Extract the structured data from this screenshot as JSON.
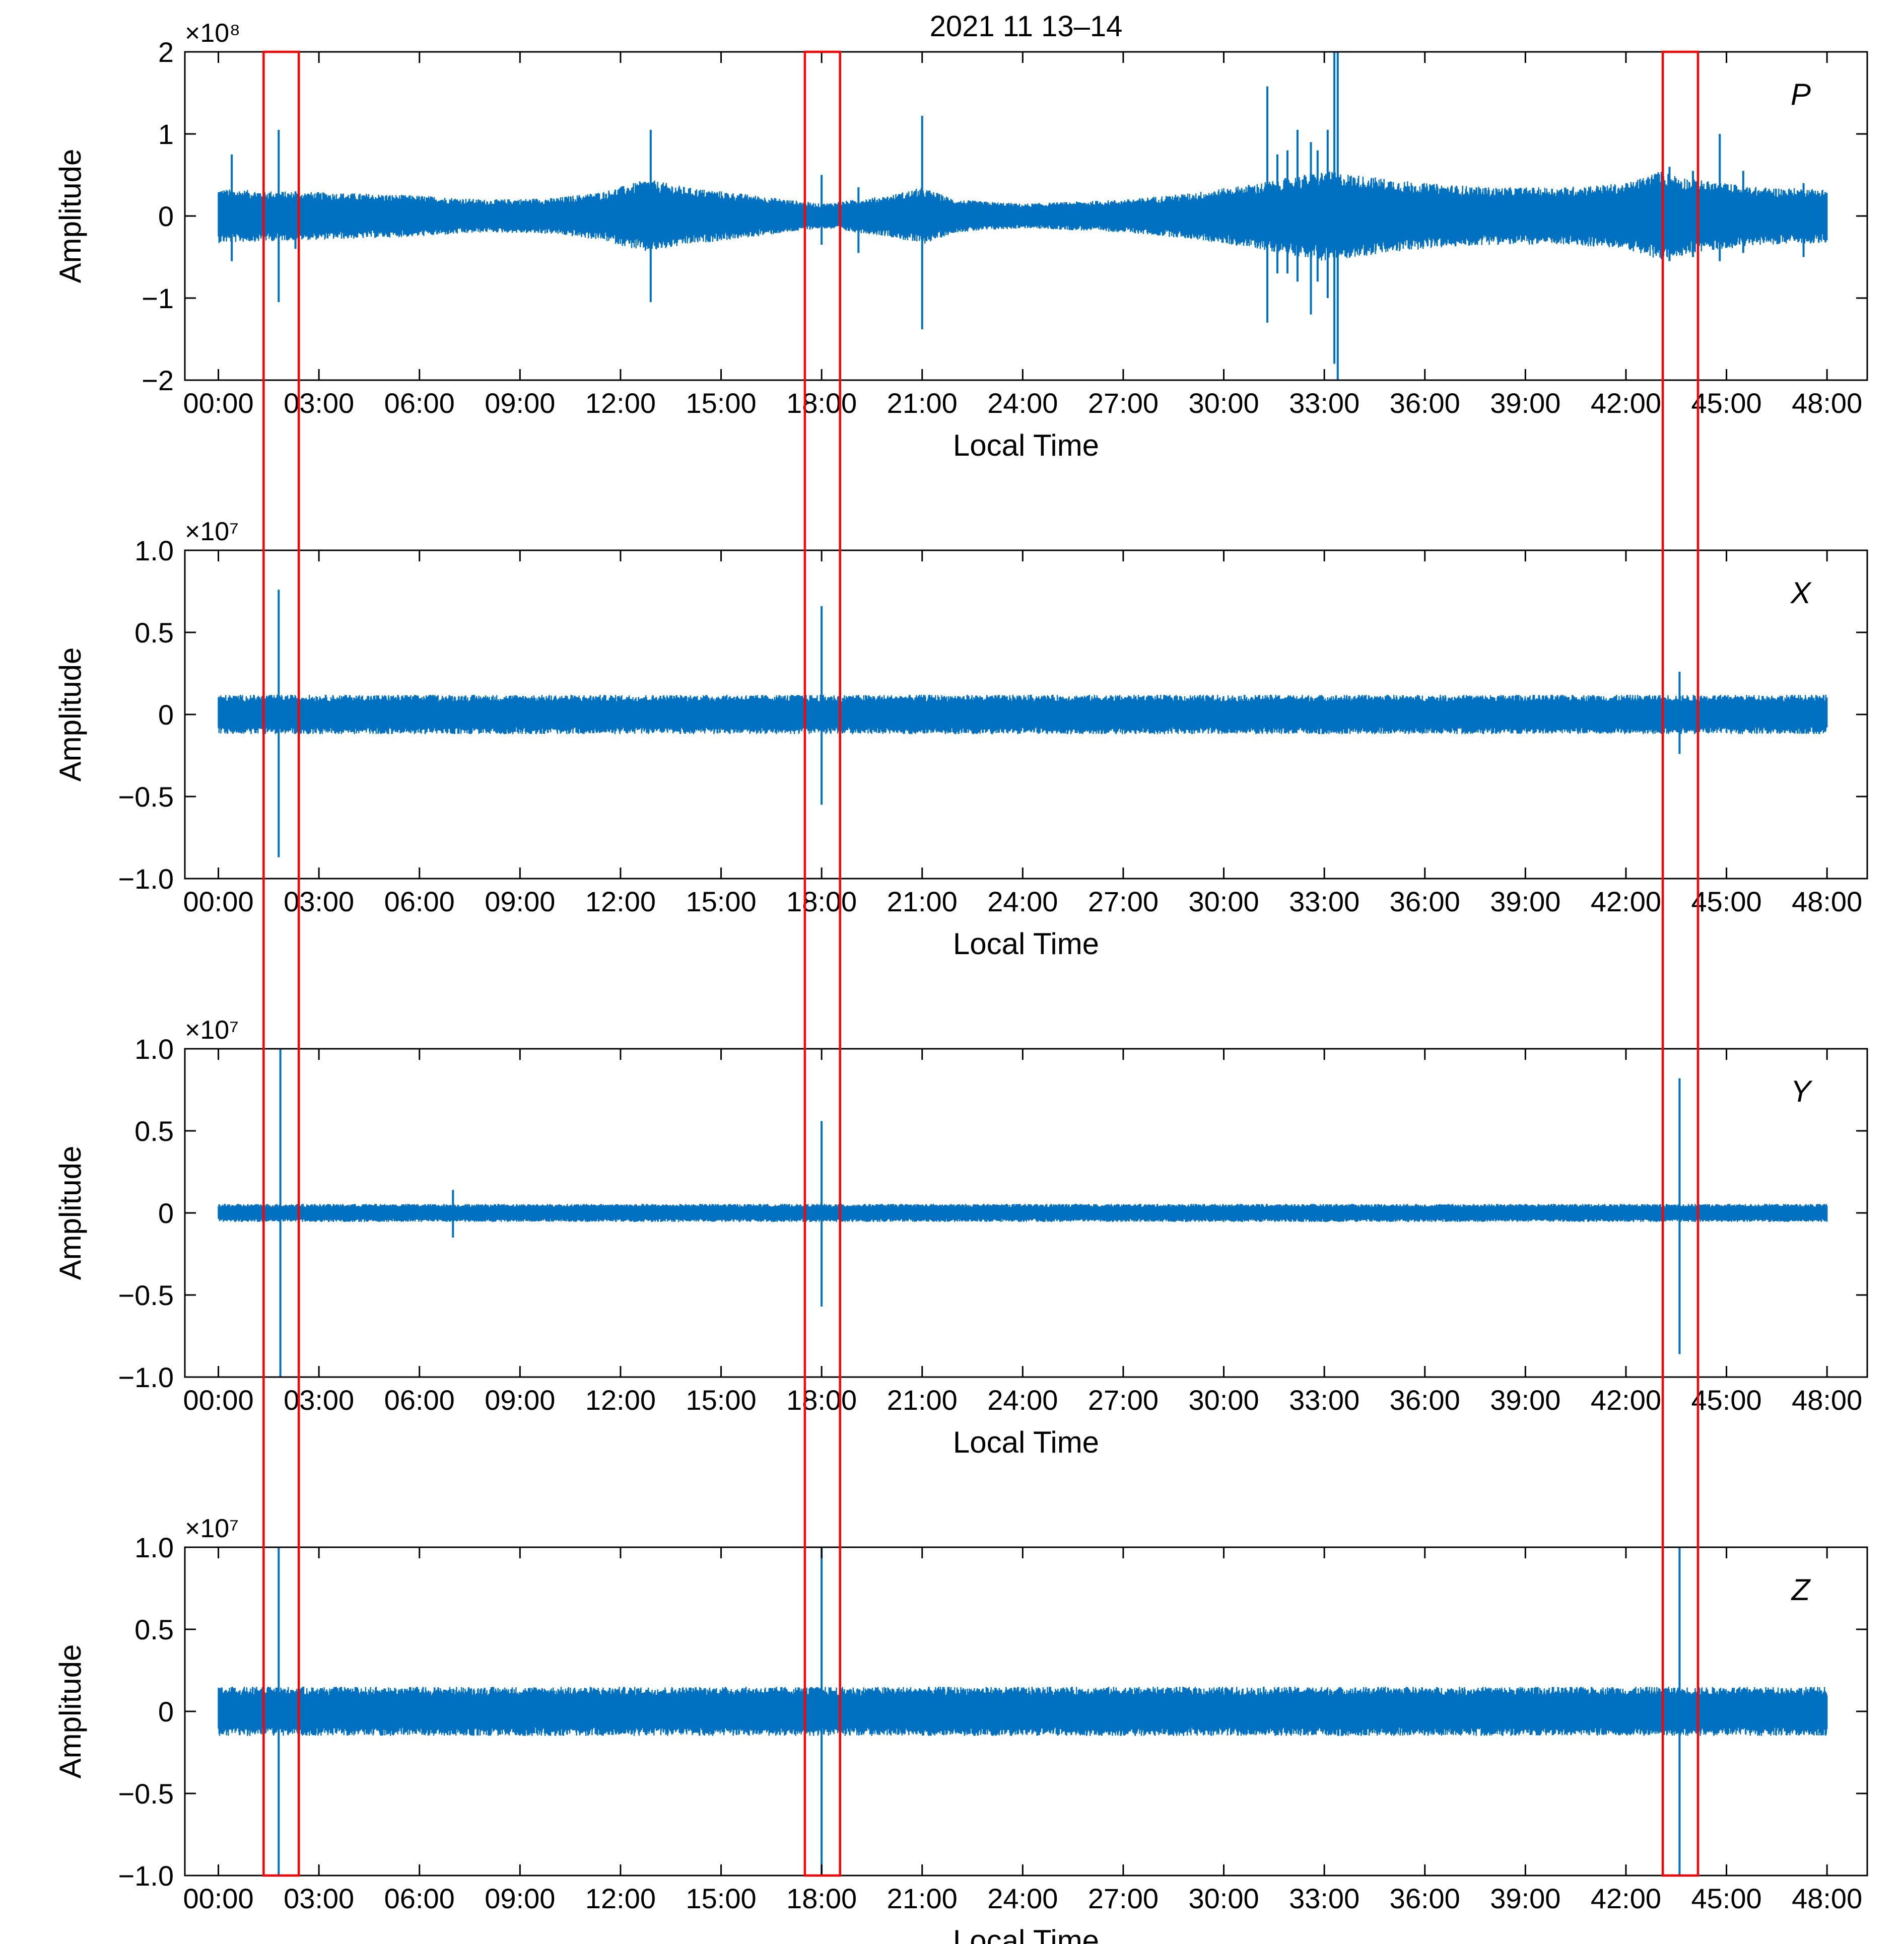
{
  "figure": {
    "title": "2021 11 13–14"
  },
  "chart_data": [
    {
      "type": "line",
      "panel_label": "P",
      "xlabel": "Local Time",
      "ylabel": "Amplitude",
      "exponent_label": "×10⁸",
      "xlim": [
        -1,
        49.2
      ],
      "ylim": [
        -2,
        2
      ],
      "xtick_labels": [
        "00:00",
        "03:00",
        "06:00",
        "09:00",
        "12:00",
        "15:00",
        "18:00",
        "21:00",
        "24:00",
        "27:00",
        "30:00",
        "33:00",
        "36:00",
        "39:00",
        "42:00",
        "45:00",
        "48:00"
      ],
      "xticks_hours": [
        0,
        3,
        6,
        9,
        12,
        15,
        18,
        21,
        24,
        27,
        30,
        33,
        36,
        39,
        42,
        45,
        48
      ],
      "ytick_labels": [
        "2",
        "1",
        "0",
        "−1",
        "−2"
      ],
      "yticks": [
        2,
        1,
        0,
        -1,
        -2
      ],
      "series": [
        {
          "color": "#0070c0",
          "baseline_envelope": [
            [
              0,
              0.33
            ],
            [
              2,
              0.3
            ],
            [
              4,
              0.28
            ],
            [
              6,
              0.25
            ],
            [
              8,
              0.2
            ],
            [
              10,
              0.22
            ],
            [
              11.5,
              0.3
            ],
            [
              12.8,
              0.45
            ],
            [
              14,
              0.35
            ],
            [
              15.5,
              0.28
            ],
            [
              17,
              0.2
            ],
            [
              18,
              0.15
            ],
            [
              20,
              0.25
            ],
            [
              21,
              0.35
            ],
            [
              22,
              0.2
            ],
            [
              24,
              0.15
            ],
            [
              27,
              0.2
            ],
            [
              29,
              0.28
            ],
            [
              31,
              0.4
            ],
            [
              33,
              0.55
            ],
            [
              34,
              0.5
            ],
            [
              36,
              0.4
            ],
            [
              38,
              0.35
            ],
            [
              40,
              0.35
            ],
            [
              42,
              0.4
            ],
            [
              43,
              0.55
            ],
            [
              44,
              0.45
            ],
            [
              46,
              0.35
            ],
            [
              48,
              0.33
            ]
          ],
          "spikes": [
            [
              0.4,
              0.75,
              -0.55
            ],
            [
              1.8,
              1.05,
              -1.05
            ],
            [
              2.3,
              0.3,
              -0.4
            ],
            [
              12.9,
              1.05,
              -1.05
            ],
            [
              18.0,
              0.5,
              -0.35
            ],
            [
              19.1,
              0.35,
              -0.45
            ],
            [
              21.0,
              1.22,
              -1.38
            ],
            [
              31.3,
              1.58,
              -1.3
            ],
            [
              31.6,
              0.75,
              -0.7
            ],
            [
              31.9,
              0.8,
              -0.7
            ],
            [
              32.2,
              1.05,
              -0.8
            ],
            [
              32.6,
              0.9,
              -1.2
            ],
            [
              32.8,
              0.8,
              -0.8
            ],
            [
              33.1,
              1.05,
              -1.0
            ],
            [
              33.3,
              2.0,
              -1.8
            ],
            [
              33.4,
              2.3,
              -2.2
            ],
            [
              43.3,
              0.6,
              -0.55
            ],
            [
              44.0,
              0.55,
              -0.5
            ],
            [
              44.8,
              1.0,
              -0.55
            ],
            [
              45.5,
              0.55,
              -0.45
            ],
            [
              47.3,
              0.4,
              -0.5
            ]
          ]
        }
      ],
      "highlight_windows_hours": [
        [
          1.35,
          2.4
        ],
        [
          17.5,
          18.55
        ],
        [
          43.1,
          44.15
        ]
      ],
      "highlight_color": "#ff0000"
    },
    {
      "type": "line",
      "panel_label": "X",
      "xlabel": "Local Time",
      "ylabel": "Amplitude",
      "exponent_label": "×10⁷",
      "xlim": [
        -1,
        49.2
      ],
      "ylim": [
        -1,
        1
      ],
      "xtick_labels": [
        "00:00",
        "03:00",
        "06:00",
        "09:00",
        "12:00",
        "15:00",
        "18:00",
        "21:00",
        "24:00",
        "27:00",
        "30:00",
        "33:00",
        "36:00",
        "39:00",
        "42:00",
        "45:00",
        "48:00"
      ],
      "xticks_hours": [
        0,
        3,
        6,
        9,
        12,
        15,
        18,
        21,
        24,
        27,
        30,
        33,
        36,
        39,
        42,
        45,
        48
      ],
      "ytick_labels": [
        "1.0",
        "0.5",
        "0",
        "−0.5",
        "−1.0"
      ],
      "yticks": [
        1,
        0.5,
        0,
        -0.5,
        -1
      ],
      "series": [
        {
          "color": "#0070c0",
          "baseline_envelope": [
            [
              0,
              0.12
            ],
            [
              48,
              0.12
            ]
          ],
          "spikes": [
            [
              1.8,
              0.76,
              -0.87
            ],
            [
              18.0,
              0.66,
              -0.55
            ],
            [
              43.6,
              0.26,
              -0.24
            ]
          ]
        }
      ],
      "highlight_windows_hours": [
        [
          1.35,
          2.4
        ],
        [
          17.5,
          18.55
        ],
        [
          43.1,
          44.15
        ]
      ],
      "highlight_color": "#ff0000"
    },
    {
      "type": "line",
      "panel_label": "Y",
      "xlabel": "Local Time",
      "ylabel": "Amplitude",
      "exponent_label": "×10⁷",
      "xlim": [
        -1,
        49.2
      ],
      "ylim": [
        -1,
        1
      ],
      "xtick_labels": [
        "00:00",
        "03:00",
        "06:00",
        "09:00",
        "12:00",
        "15:00",
        "18:00",
        "21:00",
        "24:00",
        "27:00",
        "30:00",
        "33:00",
        "36:00",
        "39:00",
        "42:00",
        "45:00",
        "48:00"
      ],
      "xticks_hours": [
        0,
        3,
        6,
        9,
        12,
        15,
        18,
        21,
        24,
        27,
        30,
        33,
        36,
        39,
        42,
        45,
        48
      ],
      "ytick_labels": [
        "1.0",
        "0.5",
        "0",
        "−0.5",
        "−1.0"
      ],
      "yticks": [
        1,
        0.5,
        0,
        -0.5,
        -1
      ],
      "series": [
        {
          "color": "#0070c0",
          "baseline_envelope": [
            [
              0,
              0.055
            ],
            [
              48,
              0.055
            ]
          ],
          "spikes": [
            [
              1.85,
              1.0,
              -1.0
            ],
            [
              7.0,
              0.14,
              -0.15
            ],
            [
              18.0,
              0.56,
              -0.57
            ],
            [
              43.6,
              0.82,
              -0.86
            ]
          ]
        }
      ],
      "highlight_windows_hours": [
        [
          1.35,
          2.4
        ],
        [
          17.5,
          18.55
        ],
        [
          43.1,
          44.15
        ]
      ],
      "highlight_color": "#ff0000"
    },
    {
      "type": "line",
      "panel_label": "Z",
      "xlabel": "Local Time",
      "ylabel": "Amplitude",
      "exponent_label": "×10⁷",
      "xlim": [
        -1,
        49.2
      ],
      "ylim": [
        -1,
        1
      ],
      "xtick_labels": [
        "00:00",
        "03:00",
        "06:00",
        "09:00",
        "12:00",
        "15:00",
        "18:00",
        "21:00",
        "24:00",
        "27:00",
        "30:00",
        "33:00",
        "36:00",
        "39:00",
        "42:00",
        "45:00",
        "48:00"
      ],
      "xticks_hours": [
        0,
        3,
        6,
        9,
        12,
        15,
        18,
        21,
        24,
        27,
        30,
        33,
        36,
        39,
        42,
        45,
        48
      ],
      "ytick_labels": [
        "1.0",
        "0.5",
        "0",
        "−0.5",
        "−1.0"
      ],
      "yticks": [
        1,
        0.5,
        0,
        -0.5,
        -1
      ],
      "series": [
        {
          "color": "#0070c0",
          "baseline_envelope": [
            [
              0,
              0.15
            ],
            [
              48,
              0.15
            ]
          ],
          "spikes": [
            [
              1.8,
              1.0,
              -1.0
            ],
            [
              18.0,
              1.0,
              -1.0
            ],
            [
              43.6,
              1.0,
              -1.0
            ]
          ]
        }
      ],
      "highlight_windows_hours": [
        [
          1.35,
          2.4
        ],
        [
          17.5,
          18.55
        ],
        [
          43.1,
          44.15
        ]
      ],
      "highlight_color": "#ff0000"
    }
  ]
}
